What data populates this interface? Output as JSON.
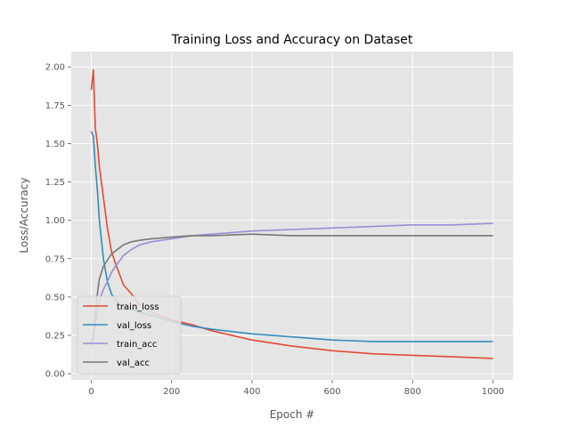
{
  "chart_data": {
    "type": "line",
    "title": "Training Loss and Accuracy on Dataset",
    "xlabel": "Epoch #",
    "ylabel": "Loss/Accuracy",
    "xlim": [
      -50,
      1050
    ],
    "ylim": [
      -0.04,
      2.1
    ],
    "xticks": [
      0,
      200,
      400,
      600,
      800,
      1000
    ],
    "yticks": [
      0.0,
      0.25,
      0.5,
      0.75,
      1.0,
      1.25,
      1.5,
      1.75,
      2.0
    ],
    "xtick_labels": [
      "0",
      "200",
      "400",
      "600",
      "800",
      "1000"
    ],
    "ytick_labels": [
      "0.00",
      "0.25",
      "0.50",
      "0.75",
      "1.00",
      "1.25",
      "1.50",
      "1.75",
      "2.00"
    ],
    "grid": true,
    "legend_position": "lower-left",
    "background": "#e5e5e5",
    "series": [
      {
        "name": "train_loss",
        "color": "#e24a33",
        "x": [
          0,
          5,
          10,
          15,
          20,
          30,
          40,
          50,
          60,
          80,
          100,
          120,
          150,
          200,
          250,
          300,
          400,
          500,
          600,
          700,
          800,
          900,
          1000
        ],
        "values": [
          1.85,
          1.98,
          1.6,
          1.5,
          1.35,
          1.15,
          0.95,
          0.8,
          0.72,
          0.58,
          0.52,
          0.45,
          0.4,
          0.35,
          0.32,
          0.28,
          0.22,
          0.18,
          0.15,
          0.13,
          0.12,
          0.11,
          0.1
        ]
      },
      {
        "name": "val_loss",
        "color": "#348abd",
        "x": [
          0,
          5,
          10,
          15,
          20,
          30,
          40,
          50,
          60,
          80,
          100,
          120,
          150,
          200,
          250,
          300,
          400,
          500,
          600,
          700,
          800,
          900,
          1000
        ],
        "values": [
          1.58,
          1.55,
          1.35,
          1.2,
          1.0,
          0.75,
          0.6,
          0.52,
          0.48,
          0.44,
          0.42,
          0.4,
          0.38,
          0.34,
          0.31,
          0.29,
          0.26,
          0.24,
          0.22,
          0.21,
          0.21,
          0.21,
          0.21
        ]
      },
      {
        "name": "train_acc",
        "color": "#988ed5",
        "x": [
          0,
          5,
          10,
          15,
          20,
          30,
          40,
          50,
          60,
          80,
          100,
          120,
          150,
          200,
          250,
          300,
          400,
          500,
          600,
          700,
          800,
          900,
          1000
        ],
        "values": [
          0.2,
          0.25,
          0.32,
          0.4,
          0.48,
          0.55,
          0.6,
          0.66,
          0.7,
          0.77,
          0.81,
          0.84,
          0.86,
          0.88,
          0.9,
          0.91,
          0.93,
          0.94,
          0.95,
          0.96,
          0.97,
          0.97,
          0.98
        ]
      },
      {
        "name": "val_acc",
        "color": "#777777",
        "x": [
          0,
          5,
          10,
          15,
          20,
          30,
          40,
          50,
          60,
          80,
          100,
          120,
          150,
          200,
          250,
          300,
          400,
          500,
          600,
          700,
          800,
          900,
          1000
        ],
        "values": [
          0.18,
          0.25,
          0.38,
          0.52,
          0.62,
          0.7,
          0.74,
          0.78,
          0.8,
          0.84,
          0.86,
          0.87,
          0.88,
          0.89,
          0.9,
          0.9,
          0.91,
          0.9,
          0.9,
          0.9,
          0.9,
          0.9,
          0.9
        ]
      }
    ]
  }
}
